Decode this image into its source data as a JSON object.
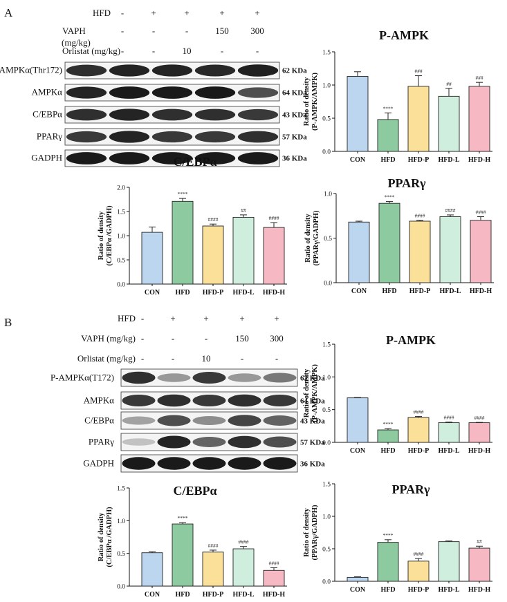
{
  "panels": [
    {
      "letter": "A",
      "conditions": [
        {
          "name": "HFD",
          "name_line2": "",
          "values": [
            "-",
            "+",
            "+",
            "+",
            "+"
          ]
        },
        {
          "name": "VAPH",
          "name_line2": "(mg/kg)",
          "values": [
            "-",
            "-",
            "-",
            "150",
            "300"
          ]
        },
        {
          "name": "Orlistat (mg/kg)",
          "name_line2": "",
          "values": [
            "-",
            "-",
            "10",
            "-",
            "-"
          ]
        }
      ],
      "blots": [
        {
          "label": "P-AMPKα(Thr172)",
          "size": "62 KDa",
          "pattern": [
            0.85,
            0.9,
            0.9,
            0.88,
            0.92
          ]
        },
        {
          "label": "AMPKα",
          "size": "64 KDa",
          "pattern": [
            0.9,
            0.95,
            0.95,
            0.95,
            0.7
          ]
        },
        {
          "label": "C/EBPα",
          "size": "43 KDa",
          "pattern": [
            0.85,
            0.9,
            0.85,
            0.85,
            0.8
          ]
        },
        {
          "label": "PPARγ",
          "size": "57 KDa",
          "pattern": [
            0.8,
            0.9,
            0.8,
            0.8,
            0.85
          ]
        },
        {
          "label": "GADPH",
          "size": "36 KDa",
          "pattern": [
            0.95,
            0.95,
            0.95,
            0.95,
            0.95
          ]
        }
      ]
    },
    {
      "letter": "B",
      "conditions": [
        {
          "name": "HFD",
          "name_line2": "",
          "values": [
            "-",
            "+",
            "+",
            "+",
            "+"
          ]
        },
        {
          "name": "VAPH (mg/kg)",
          "name_line2": "",
          "values": [
            "-",
            "-",
            "-",
            "150",
            "300"
          ]
        },
        {
          "name": "Orlistat (mg/kg)",
          "name_line2": "",
          "values": [
            "-",
            "-",
            "10",
            "-",
            "-"
          ]
        }
      ],
      "blots": [
        {
          "label": "P-AMPKα(T172)",
          "size": "62 KDa",
          "pattern": [
            0.85,
            0.35,
            0.8,
            0.35,
            0.5
          ]
        },
        {
          "label": "AMPKα",
          "size": "64 KDa",
          "pattern": [
            0.8,
            0.85,
            0.8,
            0.85,
            0.8
          ]
        },
        {
          "label": "C/EBPα",
          "size": "43 KDa",
          "pattern": [
            0.3,
            0.7,
            0.4,
            0.75,
            0.6
          ]
        },
        {
          "label": "PPARγ",
          "size": "57 KDa",
          "pattern": [
            0.15,
            0.9,
            0.6,
            0.85,
            0.7
          ]
        },
        {
          "label": "GADPH",
          "size": "36 KDa",
          "pattern": [
            0.95,
            0.95,
            0.95,
            0.95,
            0.95
          ]
        }
      ]
    }
  ],
  "colors": [
    "#bcd6ef",
    "#8ecaa0",
    "#fbe09a",
    "#cfeedd",
    "#f6b8c3"
  ],
  "chart_data": [
    {
      "type": "bar",
      "panel": "A",
      "title": "P-AMPK",
      "ylabel": "Ratio of density",
      "ylabel2": "(P-AMPK/AMPK)",
      "categories": [
        "CON",
        "HFD",
        "HFD-P",
        "HFD-L",
        "HFD-H"
      ],
      "values": [
        1.13,
        0.48,
        0.98,
        0.83,
        0.98
      ],
      "errors": [
        0.07,
        0.1,
        0.16,
        0.12,
        0.06
      ],
      "annotations": [
        "",
        "****",
        "###",
        "##",
        "###"
      ],
      "ylim": [
        0,
        1.5
      ],
      "yticks": [
        "0.0",
        "0.5",
        "1.0",
        "1.5"
      ]
    },
    {
      "type": "bar",
      "panel": "A",
      "title": "C/EBPα",
      "ylabel": "Ratio of density",
      "ylabel2": "(C/EBPα /GADPH)",
      "categories": [
        "CON",
        "HFD",
        "HFD-P",
        "HFD-L",
        "HFD-H"
      ],
      "values": [
        1.07,
        1.71,
        1.2,
        1.38,
        1.17
      ],
      "errors": [
        0.11,
        0.06,
        0.04,
        0.05,
        0.1
      ],
      "annotations": [
        "",
        "****",
        "####",
        "##",
        "####"
      ],
      "ylim": [
        0,
        2.0
      ],
      "yticks": [
        "0.0",
        "0.5",
        "1.0",
        "1.5",
        "2.0"
      ]
    },
    {
      "type": "bar",
      "panel": "A",
      "title": "PPARγ",
      "ylabel": "Ratio of density",
      "ylabel2": "(PPARγ/GADPH)",
      "categories": [
        "CON",
        "HFD",
        "HFD-P",
        "HFD-L",
        "HFD-H"
      ],
      "values": [
        0.68,
        0.89,
        0.69,
        0.74,
        0.7
      ],
      "errors": [
        0.01,
        0.02,
        0.01,
        0.02,
        0.04
      ],
      "annotations": [
        "",
        "****",
        "####",
        "####",
        "####"
      ],
      "ylim": [
        0,
        1.0
      ],
      "yticks": [
        "0.0",
        "0.5",
        "1.0"
      ]
    },
    {
      "type": "bar",
      "panel": "B",
      "title": "P-AMPK",
      "ylabel": "Ratio of density",
      "ylabel2": "(P-AMPK/AMPK)",
      "categories": [
        "CON",
        "HFD",
        "HFD-P",
        "HFD-L",
        "HFD-H"
      ],
      "values": [
        0.68,
        0.19,
        0.38,
        0.3,
        0.3
      ],
      "errors": [
        0.005,
        0.02,
        0.015,
        0.01,
        0.005
      ],
      "annotations": [
        "",
        "****",
        "####",
        "####",
        "####"
      ],
      "ylim": [
        0,
        1.5
      ],
      "yticks": [
        "0.0",
        "0.5",
        "1.0",
        "1.5"
      ]
    },
    {
      "type": "bar",
      "panel": "B",
      "title": "C/EBPα",
      "ylabel": "Ratio of density",
      "ylabel2": "(C/EBPα /GADPH)",
      "categories": [
        "CON",
        "HFD",
        "HFD-P",
        "HFD-L",
        "HFD-H"
      ],
      "values": [
        0.51,
        0.95,
        0.52,
        0.57,
        0.24
      ],
      "errors": [
        0.015,
        0.02,
        0.03,
        0.035,
        0.04
      ],
      "annotations": [
        "",
        "****",
        "####",
        "####",
        "####"
      ],
      "ylim": [
        0,
        1.5
      ],
      "yticks": [
        "0.0",
        "0.5",
        "1.0",
        "1.5"
      ]
    },
    {
      "type": "bar",
      "panel": "B",
      "title": "PPARγ",
      "ylabel": "Ratio of density",
      "ylabel2": "(PPARγ/GADPH)",
      "categories": [
        "CON",
        "HFD",
        "HFD-P",
        "HFD-L",
        "HFD-H"
      ],
      "values": [
        0.06,
        0.6,
        0.31,
        0.61,
        0.51
      ],
      "errors": [
        0.01,
        0.04,
        0.04,
        0.01,
        0.03
      ],
      "annotations": [
        "",
        "****",
        "####",
        "",
        "##"
      ],
      "ylim": [
        0,
        1.5
      ],
      "yticks": [
        "0.0",
        "0.5",
        "1.0",
        "1.5"
      ]
    }
  ]
}
